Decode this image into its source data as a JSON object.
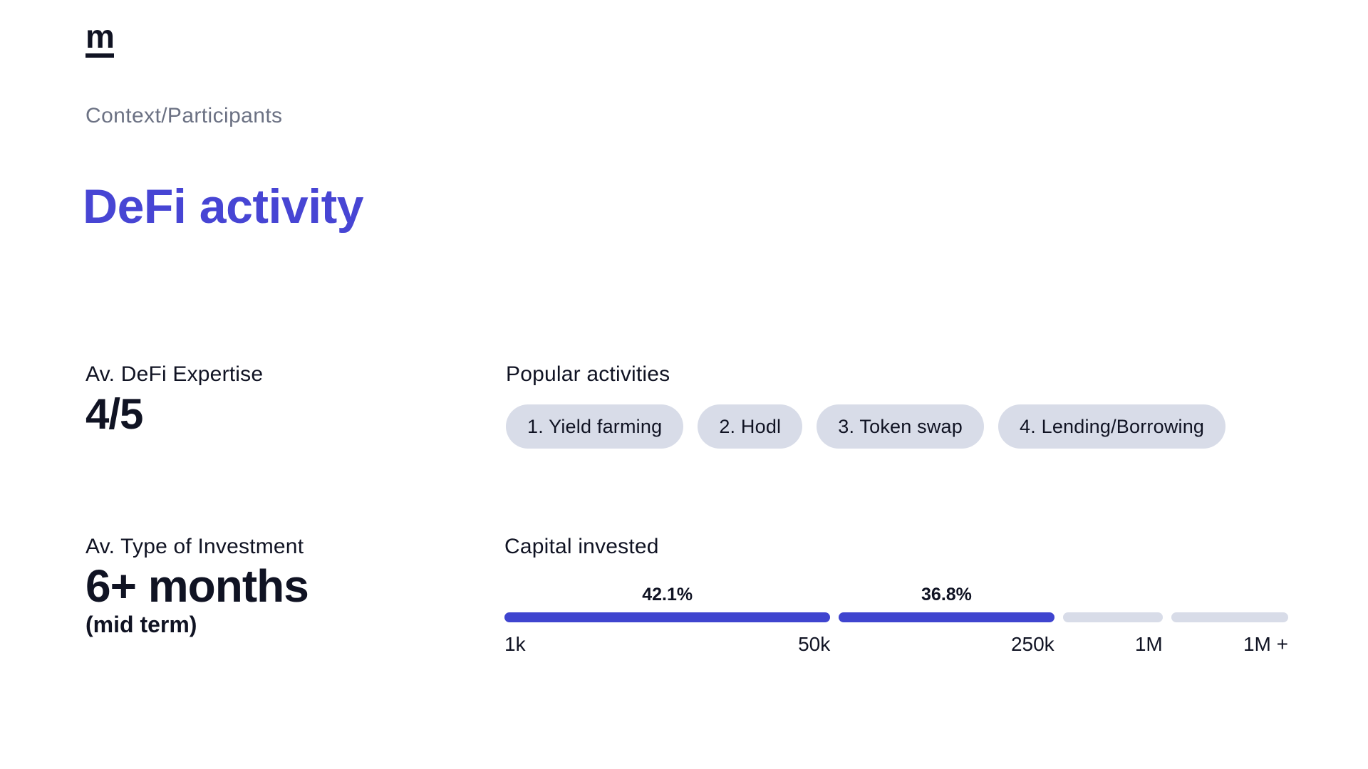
{
  "logo": {
    "text": "m"
  },
  "breadcrumb": {
    "text": "Context/Participants"
  },
  "title": {
    "text": "DeFi activity"
  },
  "stats": {
    "expertise": {
      "label": "Av. DeFi Expertise",
      "value": "4/5"
    },
    "investment": {
      "label": "Av. Type of Investment",
      "value": "6+ months",
      "note": "(mid term)"
    }
  },
  "popular_activities": {
    "label": "Popular activities",
    "pills": [
      "1. Yield farming",
      "2. Hodl",
      "3. Token swap",
      "4. Lending/Borrowing"
    ]
  },
  "chart_data": {
    "type": "bar",
    "title": "Capital invested",
    "orientation": "horizontal-segmented-distribution",
    "segments": [
      {
        "from": "1k",
        "to": "50k",
        "value": 42.1,
        "label": "42.1%",
        "highlighted": true
      },
      {
        "from": "50k",
        "to": "250k",
        "value": 36.8,
        "label": "36.8%",
        "highlighted": true
      },
      {
        "from": "250k",
        "to": "1M",
        "value": null,
        "label": "",
        "highlighted": false
      },
      {
        "from": "1M",
        "to": "1M +",
        "value": null,
        "label": "",
        "highlighted": false
      }
    ],
    "ticks": [
      "1k",
      "50k",
      "250k",
      "1M",
      "1M +"
    ],
    "legend": "none",
    "colors": {
      "highlighted": "#3f44cf",
      "muted": "#d8dce8"
    }
  },
  "colors": {
    "accent_title": "#4745d4",
    "bar_blue": "#3f44cf",
    "bar_muted": "#d8dce8",
    "pill_bg": "#d8dce8",
    "text_dark": "#101323",
    "text_gray": "#6b7183",
    "background": "#ffffff"
  }
}
